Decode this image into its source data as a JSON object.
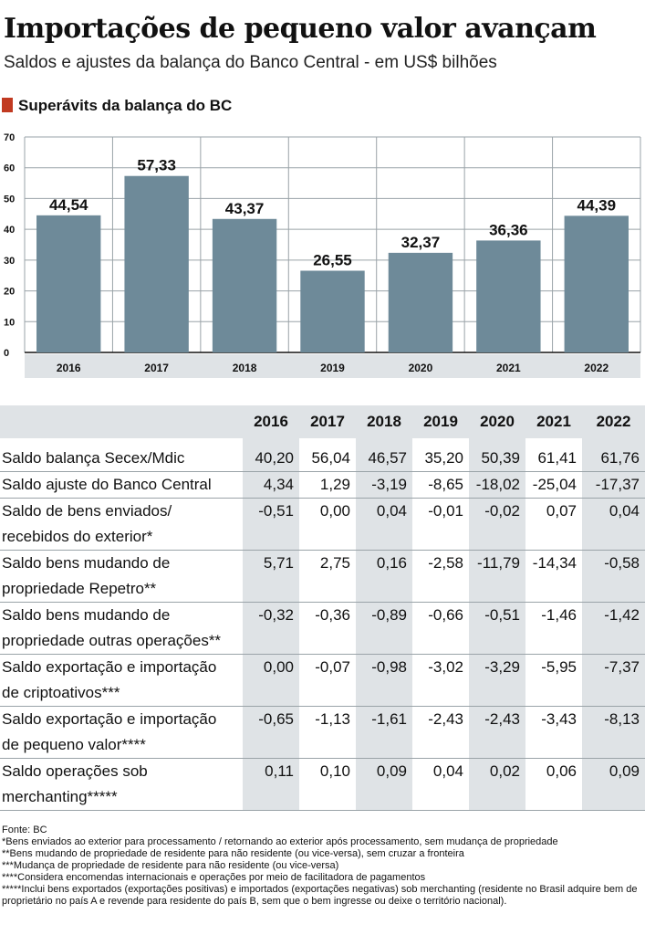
{
  "title": "Importações de pequeno valor avançam",
  "subtitle": "Saldos e ajustes da balança do Banco Central - em US$ bilhões",
  "section_title": "Superávits da balança do BC",
  "colors": {
    "bar": "#6e8a99",
    "accent": "#c13a21",
    "band": "#dfe3e6"
  },
  "chart_data": {
    "type": "bar",
    "title": "Superávits da balança do BC",
    "categories": [
      "2016",
      "2017",
      "2018",
      "2019",
      "2020",
      "2021",
      "2022"
    ],
    "values": [
      44.54,
      57.33,
      43.37,
      26.55,
      32.37,
      36.36,
      44.39
    ],
    "value_labels": [
      "44,54",
      "57,33",
      "43,37",
      "26,55",
      "32,37",
      "36,36",
      "44,39"
    ],
    "yticks": [
      "0",
      "10",
      "20",
      "30",
      "40",
      "50",
      "60",
      "70"
    ],
    "ylim": [
      0,
      70
    ],
    "grid": true
  },
  "table": {
    "years": [
      "2016",
      "2017",
      "2018",
      "2019",
      "2020",
      "2021",
      "2022"
    ],
    "rows": [
      {
        "label": "Saldo balança Secex/Mdic",
        "values": [
          "40,20",
          "56,04",
          "46,57",
          "35,20",
          "50,39",
          "61,41",
          "61,76"
        ]
      },
      {
        "label": "Saldo ajuste do Banco Central",
        "values": [
          "4,34",
          "1,29",
          "-3,19",
          "-8,65",
          "-18,02",
          "-25,04",
          "-17,37"
        ]
      },
      {
        "label": "Saldo de bens enviados/\nrecebidos do exterior*",
        "values": [
          "-0,51",
          "0,00",
          "0,04",
          "-0,01",
          "-0,02",
          "0,07",
          "0,04"
        ]
      },
      {
        "label": "Saldo bens mudando de\npropriedade Repetro**",
        "values": [
          "5,71",
          "2,75",
          "0,16",
          "-2,58",
          "-11,79",
          "-14,34",
          "-0,58"
        ]
      },
      {
        "label": "Saldo bens mudando de\npropriedade outras operações**",
        "values": [
          "-0,32",
          "-0,36",
          "-0,89",
          "-0,66",
          "-0,51",
          "-1,46",
          "-1,42"
        ]
      },
      {
        "label": "Saldo exportação e importação\nde criptoativos***",
        "values": [
          "0,00",
          "-0,07",
          "-0,98",
          "-3,02",
          "-3,29",
          "-5,95",
          "-7,37"
        ]
      },
      {
        "label": "Saldo exportação e importação\nde pequeno valor****",
        "values": [
          "-0,65",
          "-1,13",
          "-1,61",
          "-2,43",
          "-2,43",
          "-3,43",
          "-8,13"
        ]
      },
      {
        "label": "Saldo operações sob\nmerchanting*****",
        "values": [
          "0,11",
          "0,10",
          "0,09",
          "0,04",
          "0,02",
          "0,06",
          "0,09"
        ]
      }
    ]
  },
  "notes": [
    "Fonte: BC",
    "*Bens enviados ao exterior para processamento / retornando ao exterior após processamento, sem mudança de propriedade",
    "**Bens mudando de propriedade de residente para não residente (ou vice-versa), sem cruzar a fronteira",
    "***Mudança de propriedade de residente para não residente (ou vice-versa)",
    "****Considera encomendas internacionais e operações por meio de facilitadora de pagamentos",
    "*****Inclui bens exportados (exportações positivas) e importados (exportações negativas) sob merchanting (residente no Brasil adquire bem de proprietário no país A e revende para residente do país B, sem que o bem ingresse ou deixe o território nacional)."
  ]
}
